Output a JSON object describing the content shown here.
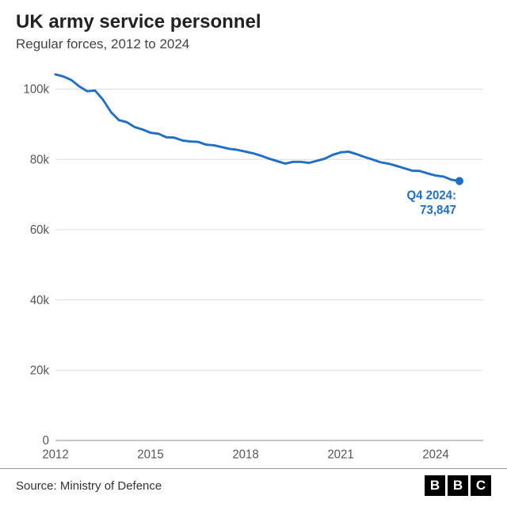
{
  "title": "UK army service personnel",
  "subtitle": "Regular forces, 2012 to 2024",
  "source": "Source: Ministry of Defence",
  "logo_letters": [
    "B",
    "B",
    "C"
  ],
  "chart": {
    "type": "line",
    "background_color": "#ffffff",
    "grid_color": "#dcdcdc",
    "axis_color": "#888888",
    "tick_label_color": "#555555",
    "tick_fontsize": 15,
    "line_color": "#1f6ec7",
    "line_width": 2.8,
    "marker_color": "#1f6ec7",
    "marker_radius": 5,
    "annotation_color": "#1f6ec7",
    "annotation_text_1": "Q4 2024:",
    "annotation_text_2": "73,847",
    "xlim": [
      2012,
      2025.5
    ],
    "ylim": [
      0,
      105000
    ],
    "x_ticks": [
      2012,
      2015,
      2018,
      2021,
      2024
    ],
    "x_tick_labels": [
      "2012",
      "2015",
      "2018",
      "2021",
      "2024"
    ],
    "y_ticks": [
      0,
      20000,
      40000,
      60000,
      80000,
      100000
    ],
    "y_tick_labels": [
      "0",
      "20k",
      "40k",
      "60k",
      "80k",
      "100k"
    ],
    "data": [
      {
        "x": 2012.0,
        "y": 104200
      },
      {
        "x": 2012.25,
        "y": 103600
      },
      {
        "x": 2012.5,
        "y": 102600
      },
      {
        "x": 2012.75,
        "y": 100800
      },
      {
        "x": 2013.0,
        "y": 99400
      },
      {
        "x": 2013.25,
        "y": 99600
      },
      {
        "x": 2013.5,
        "y": 97000
      },
      {
        "x": 2013.75,
        "y": 93500
      },
      {
        "x": 2014.0,
        "y": 91200
      },
      {
        "x": 2014.25,
        "y": 90600
      },
      {
        "x": 2014.5,
        "y": 89200
      },
      {
        "x": 2014.75,
        "y": 88500
      },
      {
        "x": 2015.0,
        "y": 87600
      },
      {
        "x": 2015.25,
        "y": 87300
      },
      {
        "x": 2015.5,
        "y": 86300
      },
      {
        "x": 2015.75,
        "y": 86200
      },
      {
        "x": 2016.0,
        "y": 85400
      },
      {
        "x": 2016.25,
        "y": 85100
      },
      {
        "x": 2016.5,
        "y": 85000
      },
      {
        "x": 2016.75,
        "y": 84200
      },
      {
        "x": 2017.0,
        "y": 84000
      },
      {
        "x": 2017.25,
        "y": 83500
      },
      {
        "x": 2017.5,
        "y": 83000
      },
      {
        "x": 2017.75,
        "y": 82700
      },
      {
        "x": 2018.0,
        "y": 82200
      },
      {
        "x": 2018.25,
        "y": 81700
      },
      {
        "x": 2018.5,
        "y": 81000
      },
      {
        "x": 2018.75,
        "y": 80200
      },
      {
        "x": 2019.0,
        "y": 79500
      },
      {
        "x": 2019.25,
        "y": 78800
      },
      {
        "x": 2019.5,
        "y": 79300
      },
      {
        "x": 2019.75,
        "y": 79300
      },
      {
        "x": 2020.0,
        "y": 79000
      },
      {
        "x": 2020.25,
        "y": 79600
      },
      {
        "x": 2020.5,
        "y": 80200
      },
      {
        "x": 2020.75,
        "y": 81300
      },
      {
        "x": 2021.0,
        "y": 82000
      },
      {
        "x": 2021.25,
        "y": 82200
      },
      {
        "x": 2021.5,
        "y": 81500
      },
      {
        "x": 2021.75,
        "y": 80700
      },
      {
        "x": 2022.0,
        "y": 80000
      },
      {
        "x": 2022.25,
        "y": 79200
      },
      {
        "x": 2022.5,
        "y": 78800
      },
      {
        "x": 2022.75,
        "y": 78200
      },
      {
        "x": 2023.0,
        "y": 77500
      },
      {
        "x": 2023.25,
        "y": 76800
      },
      {
        "x": 2023.5,
        "y": 76700
      },
      {
        "x": 2023.75,
        "y": 76000
      },
      {
        "x": 2024.0,
        "y": 75400
      },
      {
        "x": 2024.25,
        "y": 75100
      },
      {
        "x": 2024.5,
        "y": 74200
      },
      {
        "x": 2024.75,
        "y": 73847
      }
    ]
  }
}
